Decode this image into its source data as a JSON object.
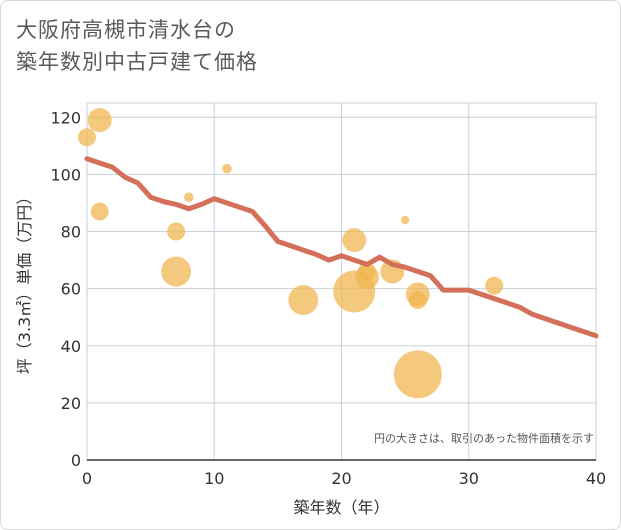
{
  "title_lines": [
    "大阪府高槻市清水台の",
    "築年数別中古戸建て価格"
  ],
  "chart_data": {
    "type": "scatter",
    "title": "大阪府高槻市清水台の築年数別中古戸建て価格",
    "xlabel": "築年数（年）",
    "ylabel": "坪（3.3㎡）単価（万円）",
    "xlim": [
      0,
      40
    ],
    "ylim": [
      0,
      125
    ],
    "xticks": [
      0,
      10,
      20,
      30,
      40
    ],
    "yticks": [
      0,
      20,
      40,
      60,
      80,
      100,
      120
    ],
    "grid": true,
    "annotation": "円の大きさは、取引のあった物件面積を示す",
    "bubble_color": "#f0b44c",
    "line_color": "#d4705a",
    "scatter": [
      {
        "x": 0,
        "y": 113,
        "size": 2
      },
      {
        "x": 1,
        "y": 119,
        "size": 3
      },
      {
        "x": 1,
        "y": 87,
        "size": 2
      },
      {
        "x": 7,
        "y": 80,
        "size": 2
      },
      {
        "x": 7,
        "y": 66,
        "size": 4
      },
      {
        "x": 8,
        "y": 92,
        "size": 0.6
      },
      {
        "x": 11,
        "y": 102,
        "size": 0.6
      },
      {
        "x": 17,
        "y": 56,
        "size": 4
      },
      {
        "x": 21,
        "y": 77,
        "size": 3
      },
      {
        "x": 21,
        "y": 59,
        "size": 6
      },
      {
        "x": 22,
        "y": 64,
        "size": 3
      },
      {
        "x": 22,
        "y": 66,
        "size": 2
      },
      {
        "x": 24,
        "y": 66,
        "size": 3
      },
      {
        "x": 25,
        "y": 84,
        "size": 0.4
      },
      {
        "x": 26,
        "y": 58,
        "size": 3
      },
      {
        "x": 26,
        "y": 56,
        "size": 2
      },
      {
        "x": 26,
        "y": 30,
        "size": 7
      },
      {
        "x": 32,
        "y": 61,
        "size": 2
      }
    ],
    "series": [
      {
        "name": "trend",
        "x": [
          0,
          1,
          2,
          3,
          4,
          5,
          6,
          7,
          8,
          9,
          10,
          11,
          12,
          13,
          14,
          15,
          16,
          17,
          18,
          19,
          20,
          21,
          22,
          23,
          24,
          25,
          26,
          27,
          28,
          29,
          30,
          31,
          32,
          33,
          34,
          35,
          36,
          37,
          38,
          39,
          40
        ],
        "y": [
          105.5,
          104,
          102.5,
          99,
          97,
          92,
          90.5,
          89.5,
          88,
          89.5,
          91.5,
          90,
          88.5,
          87,
          82,
          76.5,
          75,
          73.5,
          72,
          70,
          71.5,
          70,
          68.5,
          71,
          68.5,
          67.5,
          66,
          64.5,
          59.5,
          59.5,
          59.5,
          58,
          56.5,
          55,
          53.5,
          51,
          49.5,
          48,
          46.5,
          45,
          43.5
        ]
      }
    ]
  }
}
